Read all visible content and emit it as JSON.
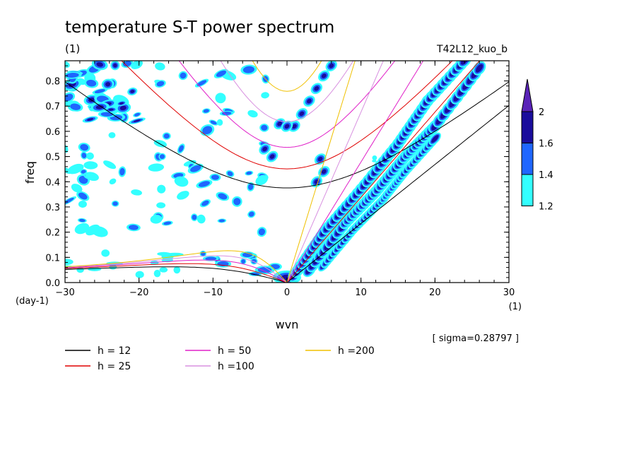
{
  "header": {
    "title": "temperature S-T power spectrum",
    "subtitle": "(1)",
    "run_label": "T42L12_kuo_b"
  },
  "axes": {
    "xlabel": "wvn",
    "ylabel": "freq",
    "x_unit": "(1)",
    "y_unit": "(day-1)"
  },
  "sigma_note": "[ sigma=0.28797 ]",
  "colorbar": {
    "levels": [
      "2",
      "1.6",
      "1.4",
      "1.2"
    ],
    "colors": [
      "#5a23b8",
      "#1a0d9c",
      "#1f66ff",
      "#33ffff"
    ]
  },
  "legend": [
    {
      "label": "h = 12",
      "color": "#000000"
    },
    {
      "label": "h = 25",
      "color": "#e00000"
    },
    {
      "label": "h = 50",
      "color": "#e020c8"
    },
    {
      "label": "h =100",
      "color": "#d890e0"
    },
    {
      "label": "h =200",
      "color": "#f0c000"
    }
  ],
  "chart_data": {
    "type": "heatmap",
    "title": "temperature S-T power spectrum",
    "xlabel": "wvn",
    "ylabel": "freq",
    "xlim": [
      -30,
      30
    ],
    "ylim": [
      0,
      0.88
    ],
    "x_ticks": [
      "-30",
      "-20",
      "-10",
      "0",
      "10",
      "20",
      "30"
    ],
    "y_ticks": [
      "0.0",
      "0.1",
      "0.2",
      "0.3",
      "0.4",
      "0.5",
      "0.6",
      "0.7",
      "0.8"
    ],
    "contour_levels": [
      1.2,
      1.4,
      1.6,
      2
    ],
    "dispersion_curves": [
      "h = 12",
      "h = 25",
      "h = 50",
      "h =100",
      "h =200"
    ],
    "high_power_bands": [
      {
        "name": "kelvin-band-1",
        "x": [
          1,
          5,
          10,
          15,
          19,
          24
        ],
        "y": [
          0.03,
          0.2,
          0.37,
          0.55,
          0.72,
          0.88
        ]
      },
      {
        "name": "kelvin-band-2",
        "x": [
          3,
          8,
          12,
          16,
          20,
          26
        ],
        "y": [
          0.05,
          0.24,
          0.36,
          0.5,
          0.62,
          0.85
        ]
      },
      {
        "name": "kelvin-band-3",
        "x": [
          5,
          9,
          13,
          16,
          20
        ],
        "y": [
          0.07,
          0.21,
          0.33,
          0.44,
          0.57
        ]
      }
    ]
  }
}
